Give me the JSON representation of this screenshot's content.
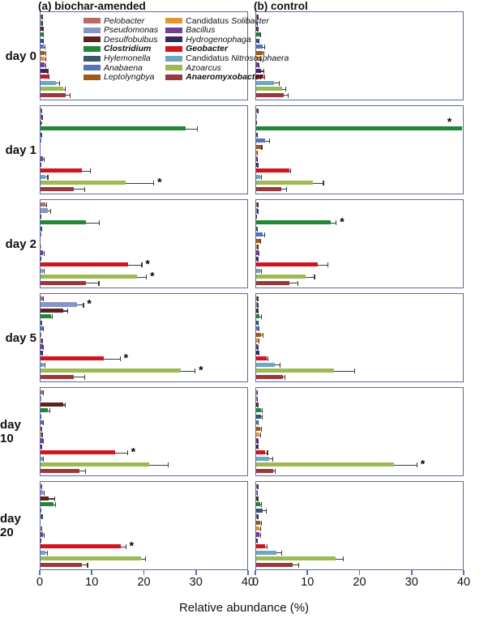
{
  "header": {
    "title_a": "(a) biochar-amended",
    "title_b": "(b) control"
  },
  "axis": {
    "xlabel": "Relative abundance (%)",
    "ticks": [
      "0",
      "10",
      "20",
      "30",
      "40"
    ],
    "xmax": 40
  },
  "chart_data": {
    "type": "bar",
    "orientation": "horizontal",
    "xlabel": "Relative abundance (%)",
    "xlim": [
      0,
      40
    ],
    "xticks": [
      0,
      10,
      20,
      30,
      40
    ],
    "sig_marker": "*",
    "days": [
      "day 0",
      "day 1",
      "day 2",
      "day 5",
      "day 10",
      "day 20"
    ],
    "columns": [
      "(a) biochar-amended",
      "(b) control"
    ],
    "taxa": [
      {
        "id": "pelobacter",
        "prefix": "",
        "name": "Pelobacter",
        "bold": false,
        "color": "#b96a66"
      },
      {
        "id": "pseudomonas",
        "prefix": "",
        "name": "Pseudomonas",
        "bold": false,
        "color": "#8495c6"
      },
      {
        "id": "desulfobulbus",
        "prefix": "",
        "name": "Desulfobulbus",
        "bold": false,
        "color": "#5e2320"
      },
      {
        "id": "clostridium",
        "prefix": "",
        "name": "Clostridium",
        "bold": true,
        "color": "#1f8735"
      },
      {
        "id": "hylemonella",
        "prefix": "",
        "name": "Hylemonella",
        "bold": false,
        "color": "#39566b"
      },
      {
        "id": "anabaena",
        "prefix": "",
        "name": "Anabaena",
        "bold": false,
        "color": "#5473b8"
      },
      {
        "id": "leptolyngbya",
        "prefix": "",
        "name": "Leptolyngbya",
        "bold": false,
        "color": "#a35a17"
      },
      {
        "id": "solibacter",
        "prefix": "Candidatus",
        "name": "Solibacter",
        "bold": false,
        "color": "#e39434"
      },
      {
        "id": "bacillus",
        "prefix": "",
        "name": "Bacillus",
        "bold": false,
        "color": "#713e97"
      },
      {
        "id": "hydrogenophaga",
        "prefix": "",
        "name": "Hydrogenophaga",
        "bold": false,
        "color": "#332a60"
      },
      {
        "id": "geobacter",
        "prefix": "",
        "name": "Geobacter",
        "bold": true,
        "color": "#d6131c"
      },
      {
        "id": "nitrososphaera",
        "prefix": "Candidatus",
        "name": "Nitrososphaera",
        "bold": false,
        "color": "#6fa6c4"
      },
      {
        "id": "azoarcus",
        "prefix": "",
        "name": "Azoarcus",
        "bold": false,
        "color": "#9cba50"
      },
      {
        "id": "anaeromyxobacter",
        "prefix": "",
        "name": "Anaeromyxobacter",
        "bold": true,
        "color": "#9c383c"
      }
    ],
    "panels": [
      {
        "id": "a-day0",
        "column": "a",
        "day": "day 0",
        "values": [
          0.3,
          0.3,
          0.4,
          0.5,
          0.5,
          0.7,
          0.8,
          0.8,
          0.8,
          1.2,
          1.5,
          3.0,
          4.4,
          4.8
        ],
        "errors": [
          0.1,
          0.1,
          0.2,
          0.2,
          0.2,
          0.3,
          0.3,
          0.3,
          0.3,
          0.3,
          0.3,
          0.8,
          0.5,
          1.0
        ],
        "sig": [],
        "sig_above": []
      },
      {
        "id": "b-day0",
        "column": "b",
        "day": "day 0",
        "values": [
          0.3,
          0.2,
          0.3,
          0.8,
          0.4,
          1.3,
          1.3,
          0.6,
          0.5,
          1.0,
          1.4,
          3.4,
          5.0,
          5.3
        ],
        "errors": [
          0.1,
          0.1,
          0.1,
          0.2,
          0.2,
          0.4,
          0.3,
          0.3,
          0.2,
          0.6,
          0.3,
          1.2,
          0.8,
          1.0
        ],
        "sig": [],
        "sig_above": []
      },
      {
        "id": "a-day1",
        "column": "a",
        "day": "day 1",
        "values": [
          0.2,
          0.3,
          0.1,
          28.0,
          0.2,
          0.1,
          0,
          0,
          0.5,
          0.1,
          8.0,
          1.0,
          16.5,
          6.4
        ],
        "errors": [
          0.1,
          0.1,
          0.1,
          2.5,
          0.1,
          0,
          0,
          0,
          0.3,
          0,
          1.8,
          0.5,
          5.5,
          2.2
        ],
        "sig": [
          12
        ],
        "sig_above": []
      },
      {
        "id": "b-day1",
        "column": "b",
        "day": "day 1",
        "values": [
          0.3,
          0.1,
          0.1,
          39.8,
          0.2,
          1.7,
          0.9,
          0.2,
          0.2,
          0.3,
          6.4,
          0.8,
          11.0,
          4.8
        ],
        "errors": [
          0.1,
          0,
          0,
          0,
          0.1,
          1.0,
          0.3,
          0.1,
          0.1,
          0.1,
          0.3,
          0.3,
          2.1,
          1.2
        ],
        "sig": [
          3
        ],
        "sig_above": [
          3
        ]
      },
      {
        "id": "a-day2",
        "column": "a",
        "day": "day 2",
        "values": [
          0.9,
          1.4,
          0.1,
          8.8,
          0.2,
          0.1,
          0,
          0.1,
          0.5,
          0.1,
          17.0,
          0.5,
          18.6,
          8.8
        ],
        "errors": [
          0.4,
          0.6,
          0,
          2.7,
          0.1,
          0,
          0,
          0,
          0.3,
          0,
          2.7,
          0.3,
          2.0,
          2.6
        ],
        "sig": [
          10,
          12
        ],
        "sig_above": []
      },
      {
        "id": "b-day2",
        "column": "b",
        "day": "day 2",
        "values": [
          0.3,
          0.3,
          0.1,
          14.5,
          0.2,
          1.3,
          0.8,
          0.3,
          0.5,
          0.3,
          11.9,
          0.8,
          9.5,
          6.4
        ],
        "errors": [
          0.1,
          0.1,
          0,
          1.1,
          0.1,
          0.4,
          0.2,
          0.1,
          0.2,
          0.1,
          2.1,
          0.3,
          1.9,
          1.8
        ],
        "sig": [
          3
        ],
        "sig_above": []
      },
      {
        "id": "a-day5",
        "column": "a",
        "day": "day 5",
        "values": [
          0.4,
          7.0,
          4.4,
          2.0,
          0.2,
          0.4,
          0.1,
          0.3,
          0.4,
          0.3,
          12.2,
          0.6,
          27.2,
          6.4
        ],
        "errors": [
          0.2,
          1.4,
          1.0,
          0.4,
          0.1,
          0.2,
          0,
          0.1,
          0.2,
          0.1,
          3.3,
          0.4,
          2.8,
          2.3
        ],
        "sig": [
          1,
          10,
          12
        ],
        "sig_above": []
      },
      {
        "id": "b-day5",
        "column": "b",
        "day": "day 5",
        "values": [
          0.3,
          0.3,
          0.3,
          0.7,
          0.3,
          0.4,
          1.0,
          0.4,
          0.3,
          0.4,
          2.0,
          3.6,
          15.0,
          5.2
        ],
        "errors": [
          0.1,
          0.1,
          0.1,
          0.4,
          0.2,
          0.2,
          0.4,
          0.2,
          0.1,
          0.2,
          0.4,
          1.1,
          4.2,
          0.5
        ],
        "sig": [],
        "sig_above": []
      },
      {
        "id": "a-day10",
        "column": "a",
        "day": "day 10",
        "values": [
          0.5,
          0.1,
          4.4,
          1.4,
          0.1,
          0.4,
          0.2,
          0.3,
          0.4,
          0.2,
          14.5,
          0.4,
          21.0,
          7.5
        ],
        "errors": [
          0.2,
          0,
          0.5,
          0.5,
          0,
          0.2,
          0.1,
          0.1,
          0.2,
          0.1,
          2.4,
          0.2,
          3.8,
          1.3
        ],
        "sig": [
          10
        ],
        "sig_above": []
      },
      {
        "id": "b-day10",
        "column": "b",
        "day": "day 10",
        "values": [
          0.2,
          0.2,
          0.3,
          1.0,
          1.0,
          0.3,
          0.8,
          0.7,
          0.3,
          0.3,
          1.8,
          2.5,
          26.7,
          3.3
        ],
        "errors": [
          0.1,
          0.1,
          0.1,
          0.3,
          0.3,
          0.2,
          0.3,
          0.3,
          0.1,
          0.2,
          0.5,
          0.8,
          4.5,
          0.5
        ],
        "sig": [
          12
        ],
        "sig_above": []
      },
      {
        "id": "a-day20",
        "column": "a",
        "day": "day 20",
        "values": [
          0.2,
          0.5,
          1.5,
          2.5,
          0.1,
          0.3,
          0,
          0.2,
          0.5,
          0.1,
          15.5,
          0.9,
          19.4,
          8.0
        ],
        "errors": [
          0.1,
          0.3,
          1.4,
          0.5,
          0,
          0.1,
          0,
          0.1,
          0.3,
          0,
          1.1,
          0.5,
          1.0,
          1.2
        ],
        "sig": [
          10
        ],
        "sig_above": []
      },
      {
        "id": "b-day20",
        "column": "b",
        "day": "day 20",
        "values": [
          0.3,
          0.2,
          0.3,
          0.8,
          1.3,
          0.3,
          0.8,
          0.7,
          0.7,
          0.2,
          1.8,
          3.9,
          15.3,
          7.0
        ],
        "errors": [
          0.1,
          0.1,
          0.1,
          0.3,
          0.8,
          0.1,
          0.3,
          0.3,
          0.3,
          0.1,
          0.4,
          1.1,
          1.6,
          1.3
        ],
        "sig": [],
        "sig_above": []
      }
    ]
  }
}
